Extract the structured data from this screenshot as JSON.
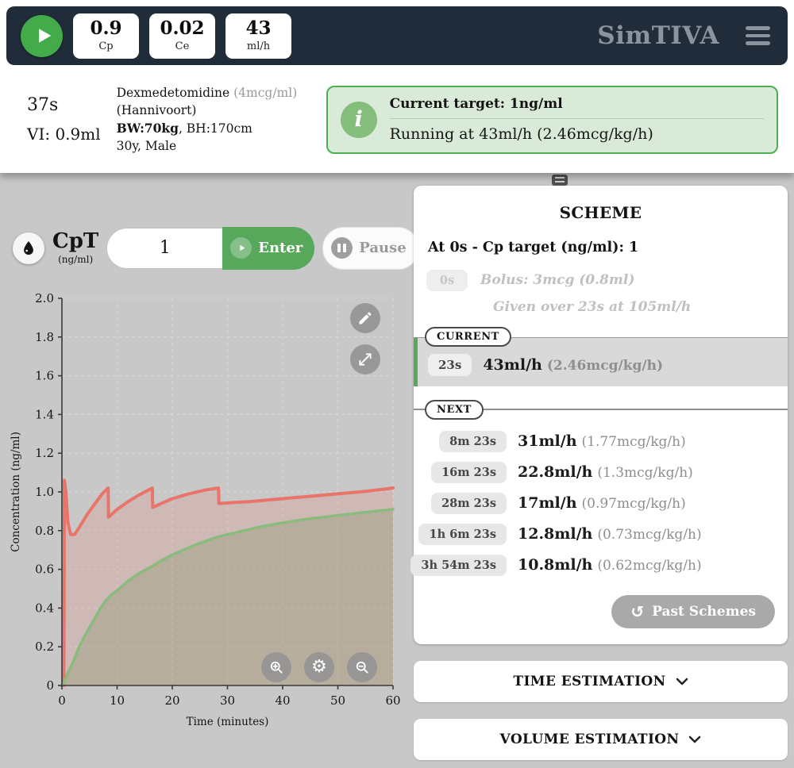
{
  "header": {
    "brand": "SimTIVA",
    "stats": [
      {
        "value": "0.9",
        "label": "Cp"
      },
      {
        "value": "0.02",
        "label": "Ce"
      },
      {
        "value": "43",
        "label": "ml/h"
      }
    ]
  },
  "status_bar": {
    "elapsed": "37s",
    "volume_infused": "VI: 0.9ml",
    "drug": {
      "name": "Dexmedetomidine",
      "concentration": "(4mcg/ml)",
      "model": "(Hannivoort)",
      "weight": "BW:70kg",
      "height_rest": ", BH:170cm",
      "demographics": "30y, Male"
    },
    "target_box": {
      "title": "Current target: 1ng/ml",
      "running": "Running at 43ml/h (2.46mcg/kg/h)"
    }
  },
  "controls": {
    "target_label": "CpT",
    "target_unit": "(ng/ml)",
    "target_value": "1",
    "enter_label": "Enter",
    "pause_label": "Pause"
  },
  "chart_data": {
    "type": "area",
    "title": "",
    "xlabel": "Time (minutes)",
    "ylabel": "Concentration (ng/ml)",
    "xlim": [
      0,
      60
    ],
    "ylim": [
      0,
      2.0
    ],
    "xticks": [
      0,
      10,
      20,
      30,
      40,
      50,
      60
    ],
    "yticks": [
      0,
      0.2,
      0.4,
      0.6,
      0.8,
      1.0,
      1.2,
      1.4,
      1.6,
      1.8,
      2.0
    ],
    "grid": true,
    "legend": "none",
    "series": [
      {
        "name": "Cp",
        "color": "#e8746a",
        "fill": "rgba(232,116,106,0.18)",
        "width": 4,
        "points": [
          [
            0,
            0
          ],
          [
            0.35,
            0
          ],
          [
            0.45,
            1.06
          ],
          [
            0.7,
            1.0
          ],
          [
            1.1,
            0.84
          ],
          [
            1.6,
            0.78
          ],
          [
            2.3,
            0.78
          ],
          [
            3,
            0.81
          ],
          [
            4.5,
            0.88
          ],
          [
            6,
            0.94
          ],
          [
            7.3,
            0.99
          ],
          [
            8.38,
            1.02
          ],
          [
            8.45,
            0.87
          ],
          [
            10,
            0.91
          ],
          [
            12,
            0.95
          ],
          [
            14,
            0.985
          ],
          [
            16.38,
            1.02
          ],
          [
            16.45,
            0.92
          ],
          [
            18,
            0.94
          ],
          [
            20,
            0.965
          ],
          [
            23,
            0.99
          ],
          [
            26,
            1.01
          ],
          [
            28.38,
            1.02
          ],
          [
            28.45,
            0.94
          ],
          [
            31,
            0.945
          ],
          [
            34,
            0.95
          ],
          [
            38,
            0.96
          ],
          [
            42,
            0.97
          ],
          [
            46,
            0.98
          ],
          [
            50,
            0.99
          ],
          [
            54,
            1.0
          ],
          [
            57,
            1.01
          ],
          [
            60,
            1.02
          ]
        ]
      },
      {
        "name": "Ce",
        "color": "#89bb7d",
        "fill": "rgba(130,145,100,0.30)",
        "width": 3.5,
        "points": [
          [
            0,
            0
          ],
          [
            0.5,
            0.02
          ],
          [
            1,
            0.06
          ],
          [
            2,
            0.12
          ],
          [
            3,
            0.19
          ],
          [
            4,
            0.25
          ],
          [
            5,
            0.3
          ],
          [
            6,
            0.35
          ],
          [
            7,
            0.4
          ],
          [
            8,
            0.44
          ],
          [
            9,
            0.47
          ],
          [
            10,
            0.49
          ],
          [
            12,
            0.54
          ],
          [
            14,
            0.58
          ],
          [
            16,
            0.61
          ],
          [
            18,
            0.645
          ],
          [
            20,
            0.675
          ],
          [
            22,
            0.7
          ],
          [
            24,
            0.725
          ],
          [
            26,
            0.745
          ],
          [
            28,
            0.765
          ],
          [
            30,
            0.78
          ],
          [
            33,
            0.8
          ],
          [
            36,
            0.82
          ],
          [
            40,
            0.84
          ],
          [
            44,
            0.858
          ],
          [
            48,
            0.872
          ],
          [
            52,
            0.885
          ],
          [
            56,
            0.898
          ],
          [
            60,
            0.91
          ]
        ]
      }
    ]
  },
  "scheme": {
    "title": "SCHEME",
    "header_line": "At 0s - Cp target (ng/ml): 1",
    "bolus": {
      "time": "0s",
      "text": "Bolus: 3mcg (0.8ml)",
      "detail": "Given over 23s at 105ml/h"
    },
    "current_label": "CURRENT",
    "current": {
      "time": "23s",
      "rate": "43ml/h",
      "detail": "(2.46mcg/kg/h)"
    },
    "next_label": "NEXT",
    "next_rows": [
      {
        "time": "8m 23s",
        "rate": "31ml/h",
        "detail": "(1.77mcg/kg/h)"
      },
      {
        "time": "16m 23s",
        "rate": "22.8ml/h",
        "detail": "(1.3mcg/kg/h)"
      },
      {
        "time": "28m 23s",
        "rate": "17ml/h",
        "detail": "(0.97mcg/kg/h)"
      },
      {
        "time": "1h 6m 23s",
        "rate": "12.8ml/h",
        "detail": "(0.73mcg/kg/h)"
      },
      {
        "time": "3h 54m 23s",
        "rate": "10.8ml/h",
        "detail": "(0.62mcg/kg/h)"
      }
    ],
    "past_schemes_label": "Past Schemes"
  },
  "panels": [
    {
      "label": "TIME ESTIMATION"
    },
    {
      "label": "VOLUME ESTIMATION"
    }
  ],
  "icons": {
    "gear": "⚙",
    "history": "↺",
    "info": "i"
  },
  "colors": {
    "accent_green": "#4caf50",
    "header_bg": "#212c3b",
    "cp_line": "#e8746a",
    "ce_line": "#89bb7d",
    "page_bg": "#c8c8c8"
  }
}
